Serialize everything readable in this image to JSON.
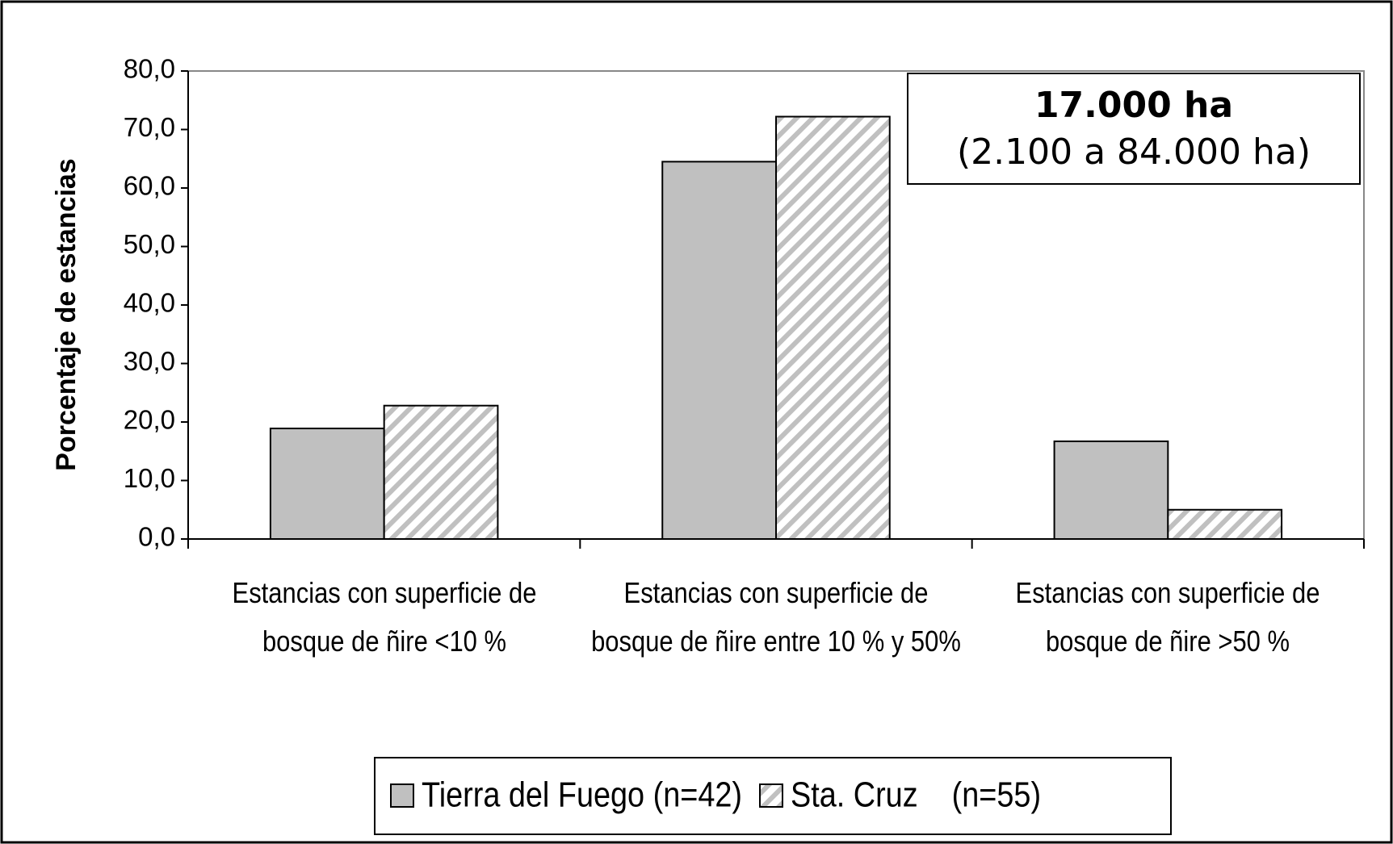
{
  "chart_data": {
    "type": "bar",
    "y_label": "Porcentaje de estancias",
    "categories": [
      "Estancias con superficie de bosque de ñire <10 %",
      "Estancias con superficie de bosque de ñire entre 10 % y 50%",
      "Estancias con superficie de bosque de ñire >50 %"
    ],
    "series": [
      {
        "name": "Tierra del Fuego (n=42)",
        "color": "#c0c0c0",
        "hatch": false,
        "values": [
          18.9,
          64.5,
          16.7
        ]
      },
      {
        "name": "Sta. Cruz    (n=55)",
        "color": "#c0c0c0",
        "hatch": true,
        "values": [
          22.8,
          72.2,
          5.0
        ]
      }
    ],
    "ylim": [
      0,
      80
    ],
    "yticks": [
      {
        "value": 0,
        "label": "0,0"
      },
      {
        "value": 10,
        "label": "10,0"
      },
      {
        "value": 20,
        "label": "20,0"
      },
      {
        "value": 30,
        "label": "30,0"
      },
      {
        "value": 40,
        "label": "40,0"
      },
      {
        "value": 50,
        "label": "50,0"
      },
      {
        "value": 60,
        "label": "60,0"
      },
      {
        "value": 70,
        "label": "70,0"
      },
      {
        "value": 80,
        "label": "80,0"
      }
    ],
    "annotations": [
      "17.000 ha",
      "(2.100 a 84.000 ha)"
    ],
    "legend": "bottom"
  }
}
